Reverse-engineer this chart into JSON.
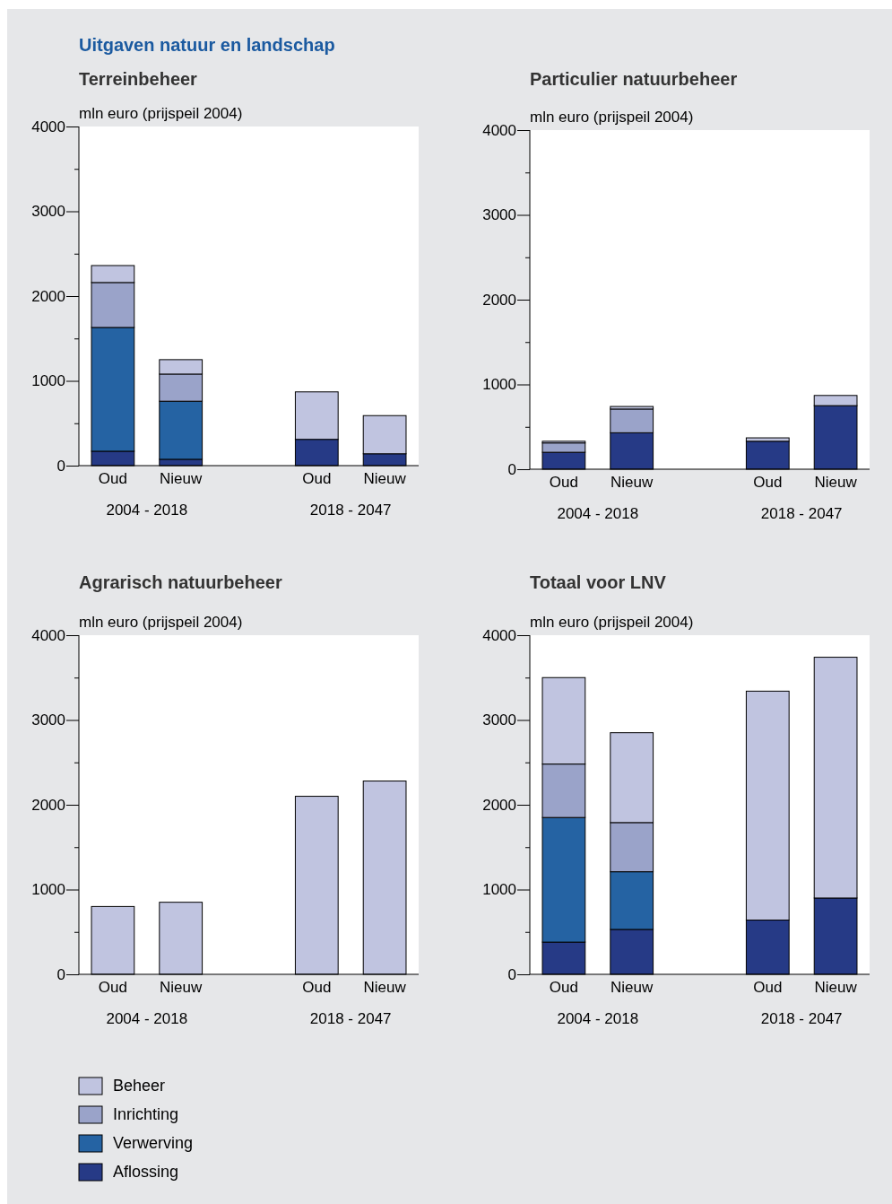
{
  "chart_data": [
    {
      "type": "bar",
      "title": "Uitgaven natuur en landschap",
      "subtitle": "Terreinbeheer",
      "ylabel": "mln euro (prijspeil 2004)",
      "stacked": true,
      "categories": [
        "Oud",
        "Nieuw",
        null,
        "Oud",
        "Nieuw"
      ],
      "annotations": [
        "2004 - 2018",
        "2018 - 2047"
      ],
      "ylim": [
        0,
        4000
      ],
      "yticks": [
        0,
        {
          "value": 500,
          "label": null
        },
        1000,
        {
          "value": 1500,
          "label": null
        },
        2000,
        {
          "value": 2500,
          "label": null
        },
        3000,
        {
          "value": 3500,
          "label": null
        },
        4000
      ],
      "grid": false,
      "series": [
        {
          "color": "#263a86",
          "values": [
            170,
            75,
            null,
            310,
            140
          ]
        },
        {
          "color": "#2563a3",
          "values": [
            1460,
            685,
            null,
            0,
            0
          ]
        },
        {
          "color": "#9aa3c9",
          "values": [
            530,
            320,
            null,
            0,
            0
          ]
        },
        {
          "color": "#c0c4e0",
          "values": [
            200,
            170,
            null,
            560,
            450
          ]
        }
      ]
    },
    {
      "type": "bar",
      "title": "Particulier natuurbeheer",
      "ylabel": "mln euro (prijspeil 2004)",
      "stacked": true,
      "categories": [
        "Oud",
        "Nieuw",
        null,
        "Oud",
        "Nieuw"
      ],
      "annotations": [
        "2004 - 2018",
        "2018 - 2047"
      ],
      "ylim": [
        0,
        4000
      ],
      "yticks": [
        0,
        {
          "value": 500,
          "label": null
        },
        1000,
        {
          "value": 1500,
          "label": null
        },
        2000,
        {
          "value": 2500,
          "label": null
        },
        3000,
        {
          "value": 3500,
          "label": null
        },
        4000
      ],
      "grid": false,
      "series": [
        {
          "color": "#263a86",
          "values": [
            200,
            430,
            null,
            330,
            750
          ]
        },
        {
          "color": "#2563a3",
          "values": [
            0,
            0,
            null,
            0,
            0
          ]
        },
        {
          "color": "#9aa3c9",
          "values": [
            110,
            280,
            null,
            0,
            0
          ]
        },
        {
          "color": "#c0c4e0",
          "values": [
            20,
            30,
            null,
            40,
            120
          ]
        }
      ]
    },
    {
      "type": "bar",
      "title": "Agrarisch natuurbeheer",
      "ylabel": "mln euro (prijspeil 2004)",
      "stacked": true,
      "categories": [
        "Oud",
        "Nieuw",
        null,
        "Oud",
        "Nieuw"
      ],
      "annotations": [
        "2004 - 2018",
        "2018 - 2047"
      ],
      "ylim": [
        0,
        4000
      ],
      "yticks": [
        0,
        {
          "value": 500,
          "label": null
        },
        1000,
        {
          "value": 1500,
          "label": null
        },
        2000,
        {
          "value": 2500,
          "label": null
        },
        3000,
        {
          "value": 3500,
          "label": null
        },
        4000
      ],
      "grid": false,
      "legend": "bottom left",
      "series": [
        {
          "name": "Aflossing",
          "color": "#263a86",
          "values": [
            0,
            0,
            null,
            0,
            0
          ]
        },
        {
          "name": "Verwerving",
          "color": "#2563a3",
          "values": [
            0,
            0,
            null,
            0,
            0
          ]
        },
        {
          "name": "Inrichting",
          "color": "#9aa3c9",
          "values": [
            0,
            0,
            null,
            0,
            0
          ]
        },
        {
          "name": "Beheer",
          "color": "#c0c4e0",
          "values": [
            800,
            850,
            null,
            2100,
            2280
          ]
        }
      ]
    },
    {
      "type": "bar",
      "title": "Totaal voor LNV",
      "ylabel": "mln euro (prijspeil 2004)",
      "stacked": true,
      "categories": [
        "Oud",
        "Nieuw",
        null,
        "Oud",
        "Nieuw"
      ],
      "annotations": [
        "2004 - 2018",
        "2018 - 2047"
      ],
      "ylim": [
        0,
        4000
      ],
      "yticks": [
        0,
        {
          "value": 500,
          "label": null
        },
        1000,
        {
          "value": 1500,
          "label": null
        },
        2000,
        {
          "value": 2500,
          "label": null
        },
        3000,
        {
          "value": 3500,
          "label": null
        },
        4000
      ],
      "grid": false,
      "series": [
        {
          "color": "#263a86",
          "values": [
            380,
            530,
            null,
            640,
            900
          ]
        },
        {
          "color": "#2563a3",
          "values": [
            1470,
            680,
            null,
            0,
            0
          ]
        },
        {
          "color": "#9aa3c9",
          "values": [
            630,
            580,
            null,
            0,
            0
          ]
        },
        {
          "color": "#c0c4e0",
          "values": [
            1020,
            1060,
            null,
            2700,
            2840
          ]
        }
      ]
    }
  ]
}
